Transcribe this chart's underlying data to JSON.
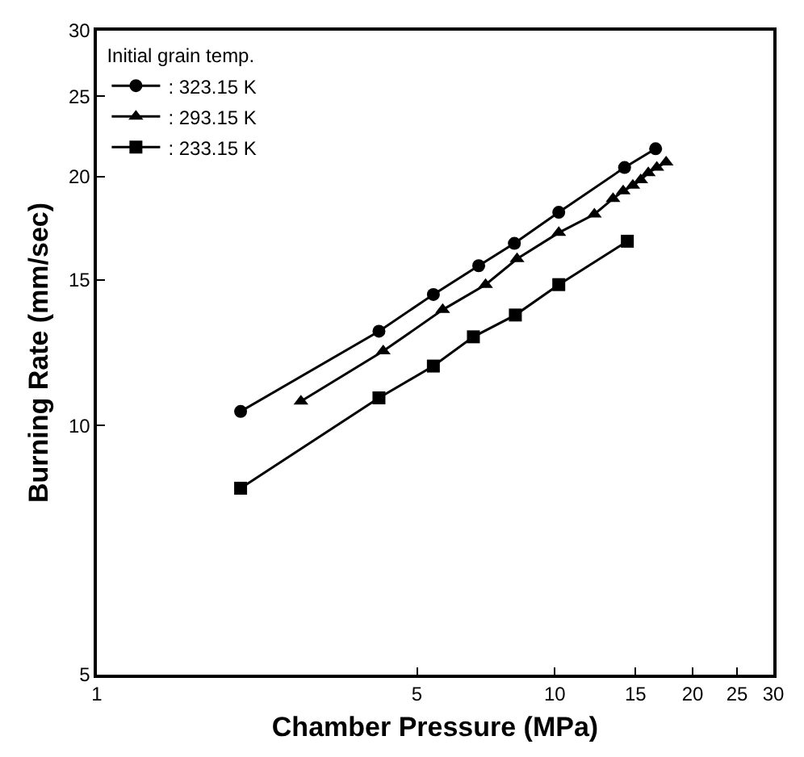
{
  "chart_data": {
    "type": "line",
    "xlabel": "Chamber Pressure (MPa)",
    "ylabel": "Burning Rate (mm/sec)",
    "legend_title": "Initial grain temp.",
    "log": "xy",
    "legend": "top left",
    "xlim": [
      1,
      30
    ],
    "xticks": [
      1,
      5,
      10,
      15,
      20,
      25,
      30
    ],
    "ylim": [
      5,
      30
    ],
    "yticks": [
      5,
      10,
      15,
      20,
      25,
      30
    ],
    "series": [
      {
        "name": ": 323.15 K",
        "color": "#000000",
        "marker": "circle",
        "x": [
          2.06,
          4.13,
          5.43,
          6.82,
          8.16,
          10.2,
          14.2,
          16.6
        ],
        "values": [
          10.4,
          13.0,
          14.4,
          15.6,
          16.6,
          18.1,
          20.5,
          21.6
        ]
      },
      {
        "name": ": 293.15 K",
        "color": "#000000",
        "marker": "triangle",
        "x": [
          2.79,
          4.22,
          5.69,
          7.06,
          8.27,
          10.2,
          12.2,
          13.4,
          14.1,
          14.8,
          15.4,
          16.0,
          16.7,
          17.5
        ],
        "values": [
          10.7,
          12.3,
          13.8,
          14.8,
          15.9,
          17.1,
          18.0,
          18.8,
          19.2,
          19.5,
          19.8,
          20.2,
          20.5,
          20.8
        ]
      },
      {
        "name": ": 233.15 K",
        "color": "#000000",
        "marker": "square",
        "x": [
          2.06,
          4.13,
          5.43,
          6.64,
          8.2,
          10.2,
          14.4
        ],
        "values": [
          8.4,
          10.8,
          11.8,
          12.8,
          13.6,
          14.8,
          16.7
        ]
      }
    ]
  }
}
